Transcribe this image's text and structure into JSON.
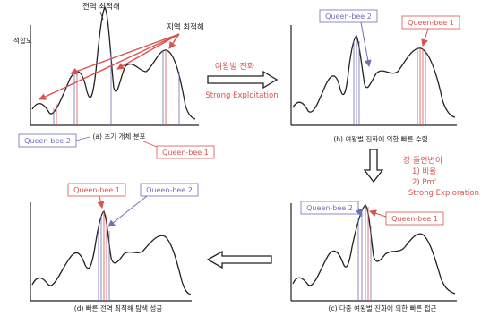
{
  "labels": {
    "global_optimum": "전역 최적해",
    "local_optimum": "지역 최적해",
    "fitness_axis": "적합도"
  },
  "bees": {
    "bee1": "Queen-bee 1",
    "bee2": "Queen-bee 2"
  },
  "captions": {
    "a": "(a) 초기 개체 분포",
    "b": "(b) 여왕벌 진화에 의한 빠른 수렴",
    "c": "(c) 다중 여왕벌 진화에 의한 빠른 접근",
    "d": "(d) 빠른 전역 최적해 탐색 성공"
  },
  "transitions": {
    "ab_line1": "여왕벌 진화",
    "ab_line2": "Strong Exploitation",
    "bc_line1": "강 돌연변이",
    "bc_line2": "1) 비율",
    "bc_line3": "2) Pm'",
    "bc_line4": "Strong Exploration"
  },
  "colors": {
    "red": "#d9534f",
    "blue": "#6f6fb8",
    "curve": "#222222"
  }
}
